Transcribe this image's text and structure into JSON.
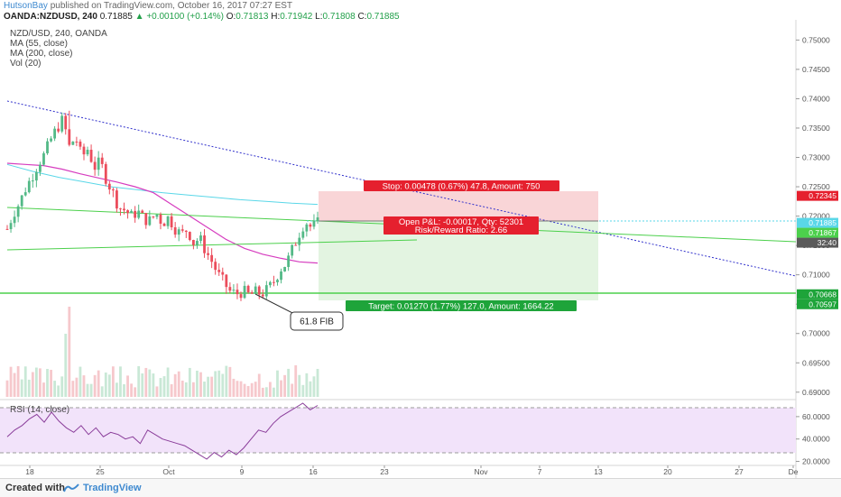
{
  "header": {
    "author": "HutsonBay",
    "published_text": "published on TradingView.com, October 16, 2017 07:27 EST",
    "symbol": "OANDA:NZDUSD, 240",
    "last": "0.71885",
    "change_arrow": "▲",
    "change": "+0.00100 (+0.14%)",
    "ohlc": [
      {
        "label": "O:",
        "value": "0.71813"
      },
      {
        "label": "H:",
        "value": "0.71942"
      },
      {
        "label": "L:",
        "value": "0.71808"
      },
      {
        "label": "C:",
        "value": "0.71885"
      }
    ]
  },
  "legend": {
    "title": "NZD/USD, 240, OANDA",
    "ma55": "MA (55, close)",
    "ma200": "MA (200, close)",
    "vol": "Vol (20)"
  },
  "rsi_label": "RSI (14, close)",
  "footer": {
    "created": "Created with",
    "brand": "TradingView",
    "logo_icon": "tradingview-logo-icon"
  },
  "colors": {
    "up": "#53b987",
    "down": "#eb4d5c",
    "ma55": "#d63dbf",
    "ma200": "#5ad7e8",
    "trendline": "#3333cc",
    "green_line": "#4cd04c",
    "stop_zone": "#f9d5d7",
    "target_zone": "#e3f4e1",
    "rsi_band": "#f2e3fa",
    "rsi_line": "#8a3d9a",
    "label_red": "#e5202e",
    "label_green": "#1ea43a"
  },
  "annotations": {
    "fib_label": "61.8 FIB",
    "stop_label": "Stop: 0.00478 (0.67%) 47.8, Amount: 750",
    "open_pl_label": "Open P&L: -0.00017, Qty: 52301",
    "rr_label": "Risk/Reward Ratio: 2.66",
    "target_label": "Target: 0.01270 (1.77%) 127.0, Amount: 1664.22"
  },
  "chart_data": [
    {
      "type": "candlestick",
      "title": "NZD/USD, 240, OANDA",
      "x_tick_labels": [
        "18",
        "25",
        "Oct",
        "9",
        "16",
        "23",
        "Nov",
        "7",
        "13",
        "20",
        "27",
        "De"
      ],
      "y_tick_labels": [
        "0.75000",
        "0.74500",
        "0.74000",
        "0.73500",
        "0.73000",
        "0.72500",
        "0.72000",
        "0.71500",
        "0.71000",
        "0.70500",
        "0.70000",
        "0.69500",
        "0.69000"
      ],
      "ylim": [
        0.6892,
        0.7519
      ],
      "price_labels": [
        {
          "value": "0.72345",
          "color": "#e5202e"
        },
        {
          "value": "0.71885",
          "color": "#5ad7e8"
        },
        {
          "value": "0.71867",
          "color": "#4cd04c"
        },
        {
          "value": "32:40",
          "color": "#5a5a5a"
        },
        {
          "value": "0.70668",
          "color": "#1ea43a"
        },
        {
          "value": "0.70597",
          "color": "#1ea43a"
        }
      ],
      "ohlc_path_approx": [
        0.7178,
        0.7205,
        0.7223,
        0.7248,
        0.7268,
        0.729,
        0.7305,
        0.733,
        0.735,
        0.7365,
        0.7318,
        0.7335,
        0.73,
        0.7315,
        0.7283,
        0.7292,
        0.7262,
        0.724,
        0.7215,
        0.721,
        0.72,
        0.7208,
        0.7195,
        0.7192,
        0.7205,
        0.7188,
        0.7198,
        0.718,
        0.7168,
        0.7178,
        0.7155,
        0.7162,
        0.714,
        0.7122,
        0.71,
        0.7085,
        0.707,
        0.7068,
        0.7072,
        0.7065,
        0.707,
        0.7068,
        0.7075,
        0.709,
        0.711,
        0.712,
        0.7145,
        0.717,
        0.7192,
        0.718,
        0.7188
      ],
      "series": [
        {
          "name": "MA (55, close)",
          "values": [
            0.729,
            0.7288,
            0.7286,
            0.728,
            0.7272,
            0.7265,
            0.7258,
            0.725,
            0.724,
            0.722,
            0.72,
            0.718,
            0.716,
            0.7145,
            0.7135,
            0.7128,
            0.7122,
            0.712
          ]
        },
        {
          "name": "MA (200, close)",
          "values": [
            0.7288,
            0.7276,
            0.7266,
            0.7258,
            0.725,
            0.7245,
            0.724,
            0.7236,
            0.7232,
            0.7228,
            0.7225,
            0.7222,
            0.722
          ]
        }
      ],
      "levels": {
        "stop": 0.72345,
        "entry": 0.71867,
        "target": 0.70597,
        "fib": 0.70668
      },
      "annotations": [
        "61.8 FIB",
        "Stop: 0.00478 (0.67%) 47.8, Amount: 750",
        "Open P&L: -0.00017, Qty: 52301",
        "Risk/Reward Ratio: 2.66",
        "Target: 0.01270 (1.77%) 127.0, Amount: 1664.22"
      ]
    },
    {
      "type": "line",
      "title": "RSI (14, close)",
      "y_tick_labels": [
        "60.0000",
        "40.0000",
        "20.0000"
      ],
      "ylim": [
        18,
        72
      ],
      "bands": [
        70,
        30
      ],
      "values": [
        42,
        48,
        52,
        58,
        62,
        55,
        64,
        56,
        50,
        46,
        52,
        44,
        50,
        42,
        46,
        44,
        40,
        42,
        36,
        48,
        44,
        40,
        38,
        36,
        34,
        30,
        26,
        22,
        28,
        24,
        30,
        26,
        32,
        40,
        48,
        46,
        54,
        60,
        64,
        68,
        72,
        66,
        70
      ]
    }
  ]
}
